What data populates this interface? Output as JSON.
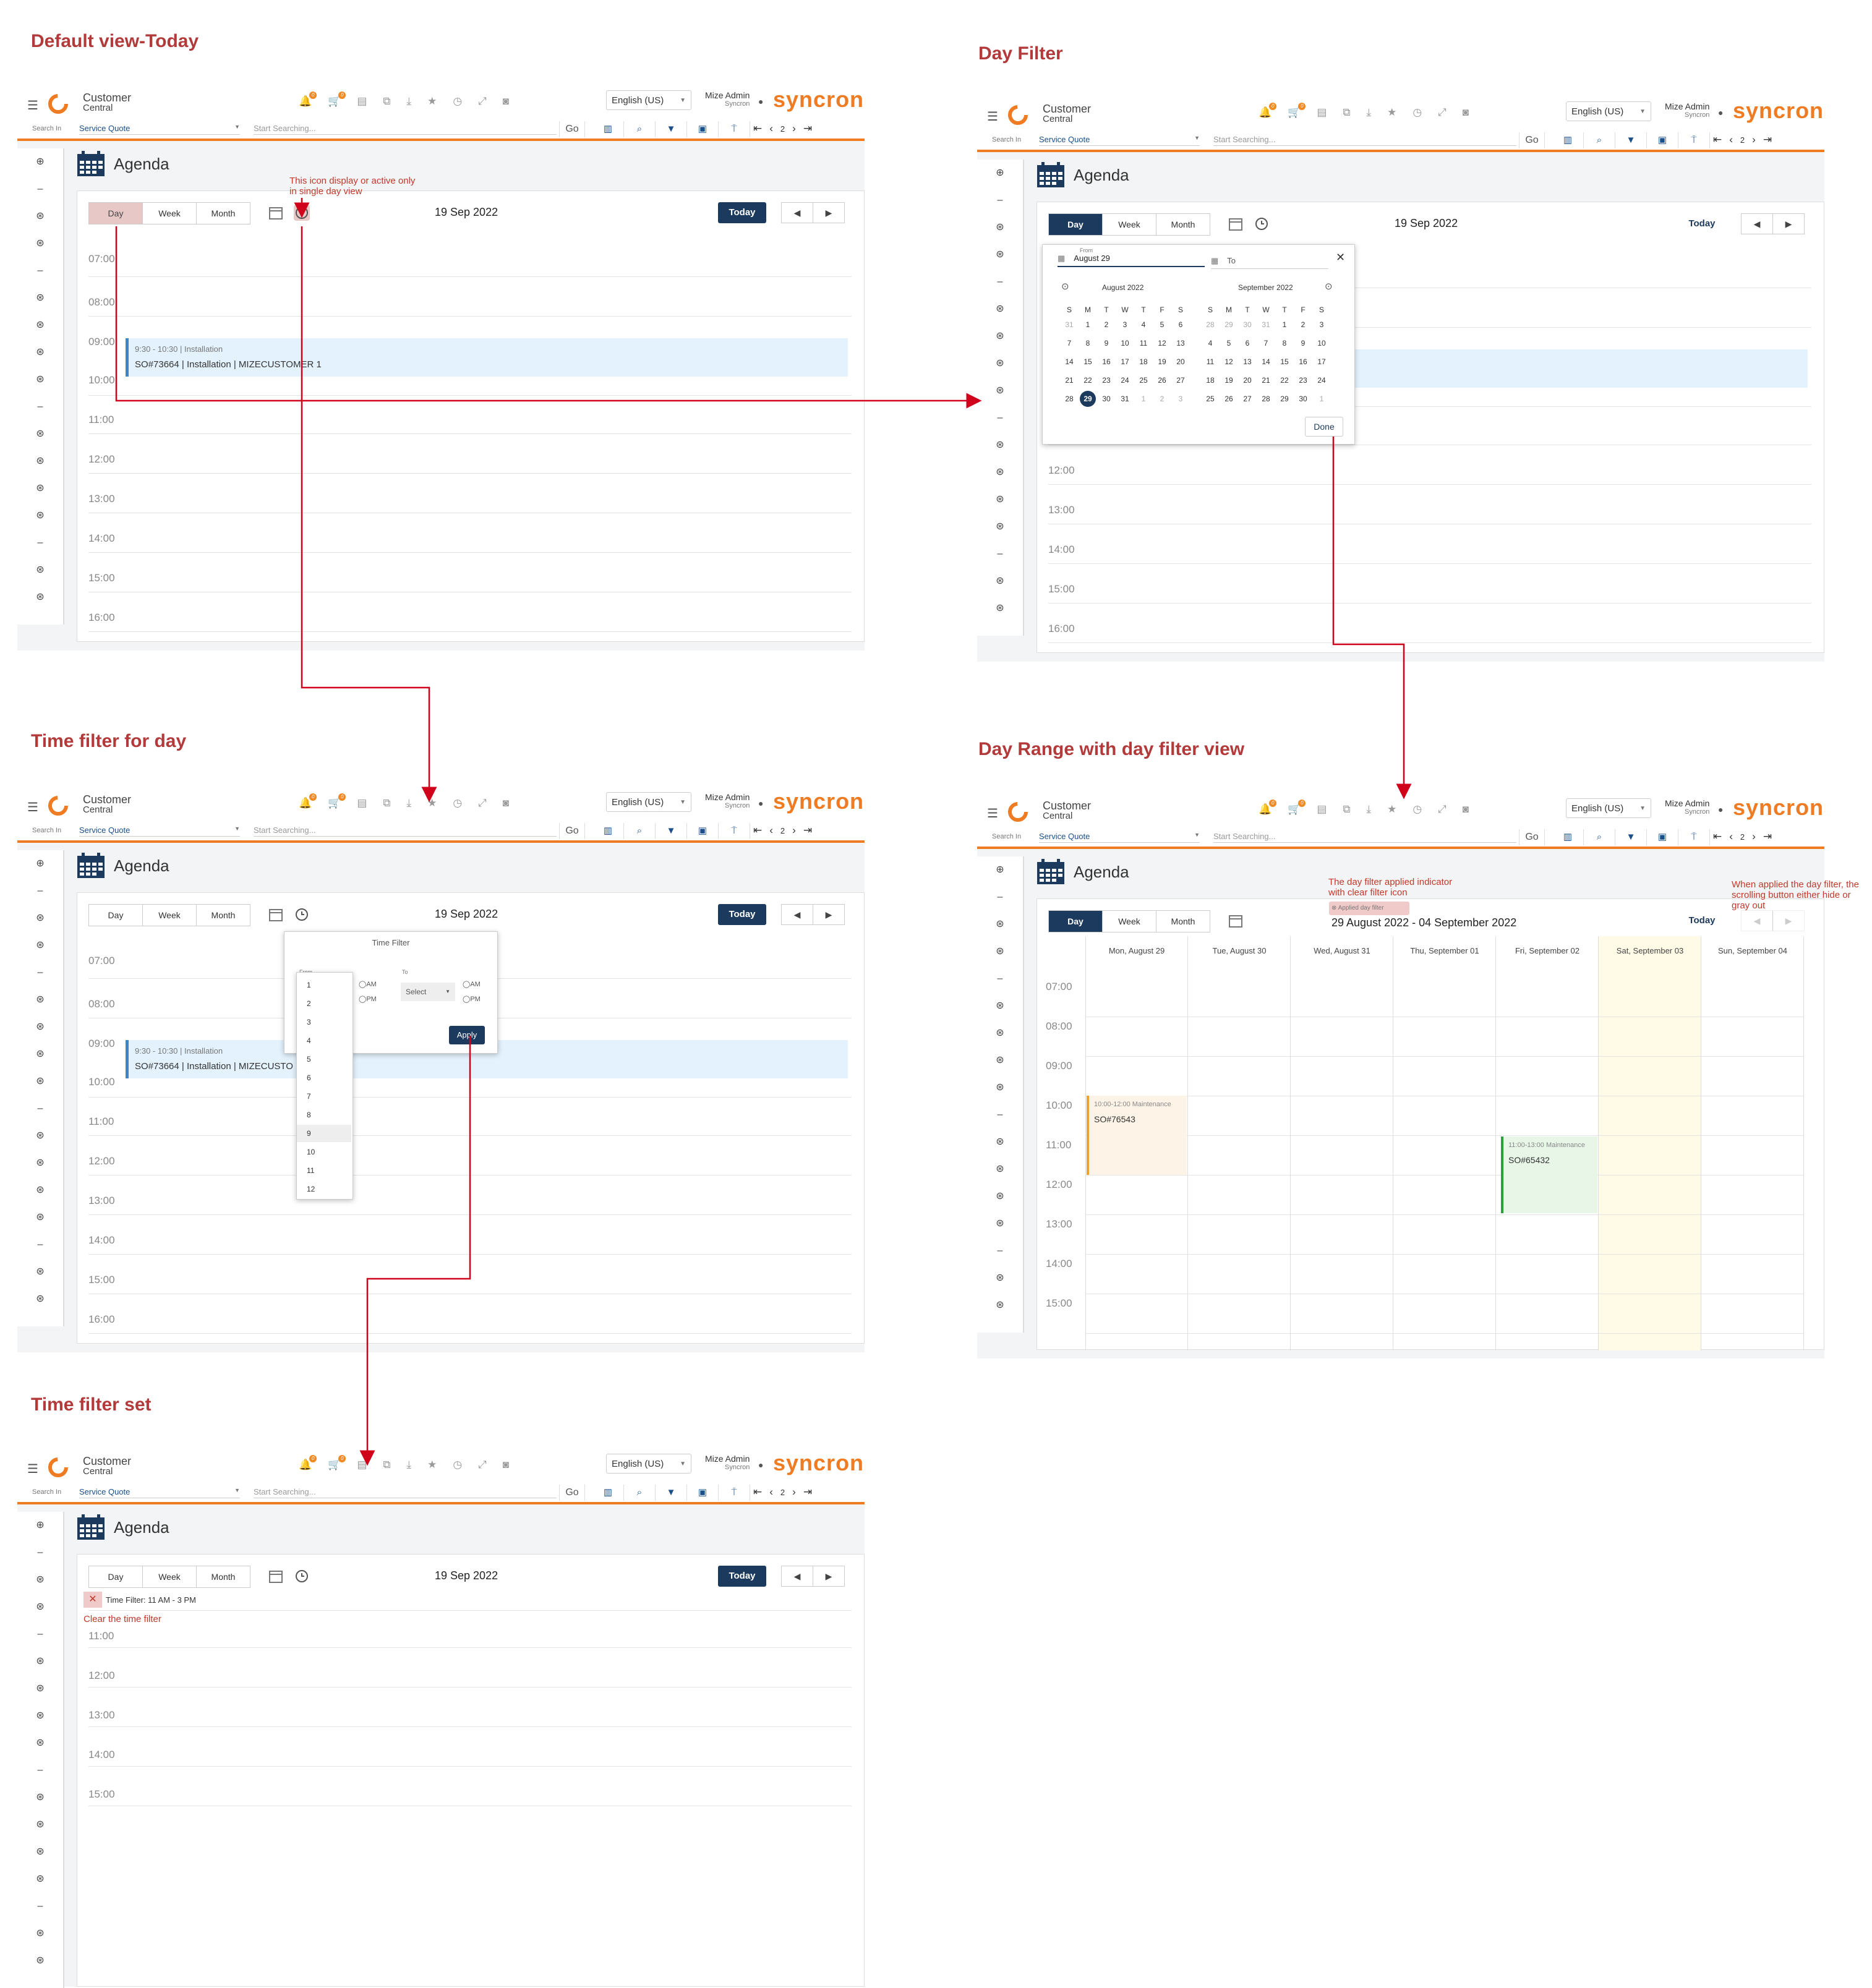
{
  "sections": {
    "default_view": "Default view-Today",
    "day_filter": "Day Filter",
    "time_filter_day": "Time filter for day",
    "day_range": "Day Range with day filter view",
    "time_filter_set": "Time filter set"
  },
  "annotations": {
    "clock_note": "This icon display or active only in single day view",
    "applied_note": "The day filter applied indicator with clear filter icon",
    "scroll_note": "When applied the day filter, the scrolling button either hide or gray out",
    "clear_note": "Clear the time filter"
  },
  "nav": {
    "brand_line1": "Customer",
    "brand_line2": "Central",
    "language": "English (US)",
    "user_name": "Mize Admin",
    "user_org": "Syncron",
    "logo_text": "syncron",
    "badge": "0",
    "search_in_label": "Search In",
    "search_in_value": "Service Quote",
    "search_placeholder": "Start Searching...",
    "go": "Go",
    "page": "2"
  },
  "agenda": {
    "title": "Agenda",
    "views": [
      "Day",
      "Week",
      "Month"
    ],
    "date": "19 Sep 2022",
    "today": "Today",
    "prev": "◀",
    "next": "▶"
  },
  "hours_full": [
    "07:00",
    "08:00",
    "09:00",
    "10:00",
    "11:00",
    "12:00",
    "13:00",
    "14:00",
    "15:00",
    "16:00"
  ],
  "hours_filtered": [
    "11:00",
    "12:00",
    "13:00",
    "14:00",
    "15:00"
  ],
  "event": {
    "time": "9:30 - 10:30  |  Installation",
    "title": "SO#73664 | Installation | MIZECUSTOMER 1",
    "title_short": "SO#73664 | Installation | MIZECUSTO"
  },
  "datepicker": {
    "from_label": "From",
    "from_value": "August 29",
    "to_label": "To",
    "month1": "August 2022",
    "month2": "September 2022",
    "dow": [
      "S",
      "M",
      "T",
      "W",
      "T",
      "F",
      "S"
    ],
    "aug": [
      [
        "31",
        "1",
        "2",
        "3",
        "4",
        "5",
        "6"
      ],
      [
        "7",
        "8",
        "9",
        "10",
        "11",
        "12",
        "13"
      ],
      [
        "14",
        "15",
        "16",
        "17",
        "18",
        "19",
        "20"
      ],
      [
        "21",
        "22",
        "23",
        "24",
        "25",
        "26",
        "27"
      ],
      [
        "28",
        "29",
        "30",
        "31",
        "1",
        "2",
        "3"
      ]
    ],
    "sep": [
      [
        "28",
        "29",
        "30",
        "31",
        "1",
        "2",
        "3"
      ],
      [
        "4",
        "5",
        "6",
        "7",
        "8",
        "9",
        "10"
      ],
      [
        "11",
        "12",
        "13",
        "14",
        "15",
        "16",
        "17"
      ],
      [
        "18",
        "19",
        "20",
        "21",
        "22",
        "23",
        "24"
      ],
      [
        "25",
        "26",
        "27",
        "28",
        "29",
        "30",
        "1"
      ]
    ],
    "done": "Done"
  },
  "time_filter": {
    "title": "Time Filter",
    "from": "From",
    "to": "To",
    "am": "AM",
    "pm": "PM",
    "select": "Select",
    "apply": "Apply",
    "hours": [
      "1",
      "2",
      "3",
      "4",
      "5",
      "6",
      "7",
      "8",
      "9",
      "10",
      "11",
      "12"
    ],
    "chip": "Time Filter: 11 AM - 3 PM"
  },
  "week": {
    "range": "29 August 2022 - 04 September 2022",
    "chip": "Applied day filter",
    "days": [
      "Mon, August 29",
      "Tue, August 30",
      "Wed, August 31",
      "Thu, September 01",
      "Fri, September 02",
      "Sat, September 03",
      "Sun, September 04"
    ],
    "hours": [
      "07:00",
      "08:00",
      "09:00",
      "10:00",
      "11:00",
      "12:00",
      "13:00",
      "14:00",
      "15:00"
    ],
    "ev1_time": "10:00-12:00  Maintenance",
    "ev1_title": "SO#76543",
    "ev2_time": "11:00-13:00  Maintenance",
    "ev2_title": "SO#65432"
  },
  "colors": {
    "accent": "#ef7b22",
    "navy": "#1c3a5e",
    "arrow": "#d0021b",
    "title": "#b23a3a"
  }
}
